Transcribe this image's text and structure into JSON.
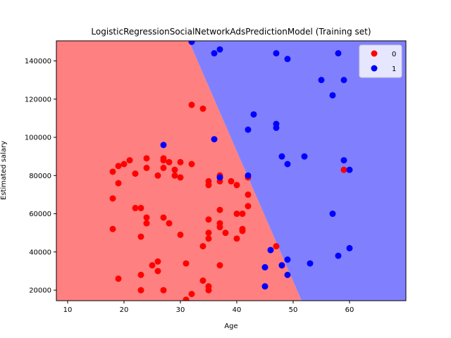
{
  "chart_data": {
    "type": "scatter",
    "title": "LogisticRegressionSocialNetworkAdsPredictionModel (Training set)",
    "xlabel": "Age",
    "ylabel": "Estimated salary",
    "xlim": [
      8,
      70
    ],
    "ylim": [
      14500,
      150500
    ],
    "xticks": [
      10,
      20,
      30,
      40,
      50,
      60
    ],
    "yticks": [
      20000,
      40000,
      60000,
      80000,
      100000,
      120000,
      140000
    ],
    "grid": false,
    "legend_position": "top-right",
    "decision_boundary": {
      "description_points": [
        [
          31.5,
          150500
        ],
        [
          51.5,
          14500
        ]
      ],
      "region_0_color": "#ff8080",
      "region_1_color": "#8080ff"
    },
    "series": [
      {
        "name": "0",
        "color": "#ff0000",
        "points": [
          [
            18,
            82000
          ],
          [
            18,
            68000
          ],
          [
            18,
            52000
          ],
          [
            19,
            85000
          ],
          [
            19,
            76000
          ],
          [
            19,
            26000
          ],
          [
            20,
            86000
          ],
          [
            21,
            88000
          ],
          [
            22,
            81000
          ],
          [
            22,
            63000
          ],
          [
            23,
            63000
          ],
          [
            23,
            48000
          ],
          [
            23,
            28000
          ],
          [
            23,
            20000
          ],
          [
            24,
            89000
          ],
          [
            24,
            84000
          ],
          [
            24,
            58000
          ],
          [
            24,
            55000
          ],
          [
            25,
            33000
          ],
          [
            26,
            80000
          ],
          [
            26,
            35000
          ],
          [
            26,
            30000
          ],
          [
            27,
            89000
          ],
          [
            27,
            88000
          ],
          [
            27,
            84000
          ],
          [
            27,
            58000
          ],
          [
            27,
            20000
          ],
          [
            28,
            87000
          ],
          [
            28,
            55000
          ],
          [
            29,
            83000
          ],
          [
            29,
            80000
          ],
          [
            30,
            87000
          ],
          [
            30,
            79000
          ],
          [
            30,
            49000
          ],
          [
            31,
            34000
          ],
          [
            31,
            15000
          ],
          [
            32,
            117000
          ],
          [
            32,
            86000
          ],
          [
            32,
            18000
          ],
          [
            34,
            115000
          ],
          [
            34,
            43000
          ],
          [
            34,
            25000
          ],
          [
            35,
            77000
          ],
          [
            35,
            75000
          ],
          [
            35,
            57000
          ],
          [
            35,
            50000
          ],
          [
            35,
            47000
          ],
          [
            35,
            22000
          ],
          [
            35,
            20000
          ],
          [
            37,
            80000
          ],
          [
            37,
            79000
          ],
          [
            37,
            77000
          ],
          [
            37,
            62000
          ],
          [
            37,
            55000
          ],
          [
            37,
            53000
          ],
          [
            37,
            33000
          ],
          [
            38,
            50000
          ],
          [
            39,
            77000
          ],
          [
            40,
            75000
          ],
          [
            40,
            60000
          ],
          [
            40,
            47000
          ],
          [
            41,
            60000
          ],
          [
            41,
            52000
          ],
          [
            41,
            51000
          ],
          [
            42,
            79000
          ],
          [
            42,
            70000
          ],
          [
            42,
            64000
          ],
          [
            47,
            43000
          ],
          [
            48,
            33000
          ],
          [
            59,
            83000
          ]
        ]
      },
      {
        "name": "1",
        "color": "#0000ff",
        "points": [
          [
            27,
            96000
          ],
          [
            32,
            150000
          ],
          [
            36,
            144000
          ],
          [
            37,
            146000
          ],
          [
            36,
            99000
          ],
          [
            37,
            79000
          ],
          [
            42,
            104000
          ],
          [
            42,
            80000
          ],
          [
            43,
            112000
          ],
          [
            45,
            32000
          ],
          [
            45,
            22000
          ],
          [
            46,
            41000
          ],
          [
            47,
            144000
          ],
          [
            47,
            107000
          ],
          [
            47,
            105000
          ],
          [
            48,
            90000
          ],
          [
            48,
            33000
          ],
          [
            49,
            141000
          ],
          [
            49,
            86000
          ],
          [
            49,
            36000
          ],
          [
            49,
            28000
          ],
          [
            52,
            90000
          ],
          [
            53,
            34000
          ],
          [
            55,
            130000
          ],
          [
            57,
            122000
          ],
          [
            57,
            60000
          ],
          [
            58,
            144000
          ],
          [
            58,
            38000
          ],
          [
            59,
            130000
          ],
          [
            59,
            88000
          ],
          [
            60,
            83000
          ],
          [
            60,
            42000
          ]
        ]
      }
    ]
  }
}
